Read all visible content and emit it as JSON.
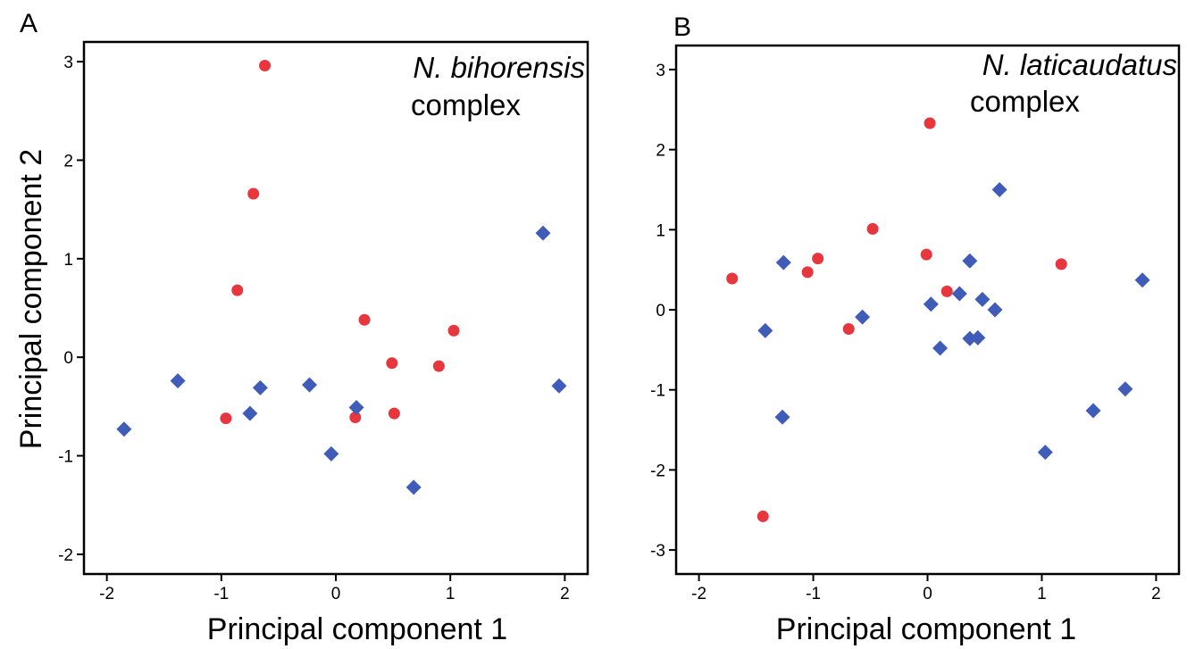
{
  "chart_data": [
    {
      "type": "scatter",
      "panel_label": "A",
      "annotation": [
        "N. bihorensis",
        "complex"
      ],
      "xlabel": "Principal component 1",
      "ylabel": "Principal component 2",
      "xlim": [
        -2.2,
        2.2
      ],
      "ylim": [
        -2.2,
        3.2
      ],
      "xticks": [
        -2,
        -1,
        0,
        1,
        2
      ],
      "yticks": [
        -2,
        -1,
        0,
        1,
        2,
        3
      ],
      "grid": false,
      "legend": "none",
      "series": [
        {
          "marker": "circle",
          "color": "#e8363e",
          "points": [
            {
              "x": -0.62,
              "y": 2.96
            },
            {
              "x": -0.72,
              "y": 1.66
            },
            {
              "x": -0.86,
              "y": 0.68
            },
            {
              "x": 0.25,
              "y": 0.38
            },
            {
              "x": 1.03,
              "y": 0.27
            },
            {
              "x": 0.49,
              "y": -0.06
            },
            {
              "x": 0.9,
              "y": -0.09
            },
            {
              "x": -0.96,
              "y": -0.62
            },
            {
              "x": 0.17,
              "y": -0.61
            },
            {
              "x": 0.51,
              "y": -0.57
            }
          ]
        },
        {
          "marker": "diamond",
          "color": "#3f5cb8",
          "points": [
            {
              "x": 1.81,
              "y": 1.26
            },
            {
              "x": 1.95,
              "y": -0.29
            },
            {
              "x": -1.38,
              "y": -0.24
            },
            {
              "x": -0.66,
              "y": -0.31
            },
            {
              "x": -0.23,
              "y": -0.28
            },
            {
              "x": -0.75,
              "y": -0.57
            },
            {
              "x": 0.18,
              "y": -0.51
            },
            {
              "x": -1.85,
              "y": -0.73
            },
            {
              "x": -0.04,
              "y": -0.98
            },
            {
              "x": 0.68,
              "y": -1.32
            }
          ]
        }
      ]
    },
    {
      "type": "scatter",
      "panel_label": "B",
      "annotation": [
        "N. laticaudatus",
        "complex"
      ],
      "xlabel": "Principal component 1",
      "ylabel": "",
      "xlim": [
        -2.2,
        2.2
      ],
      "ylim": [
        -3.3,
        3.3
      ],
      "xticks": [
        -2,
        -1,
        0,
        1,
        2
      ],
      "yticks": [
        -3,
        -2,
        -1,
        0,
        1,
        2,
        3
      ],
      "grid": false,
      "legend": "none",
      "series": [
        {
          "marker": "circle",
          "color": "#e8363e",
          "points": [
            {
              "x": 0.02,
              "y": 2.33
            },
            {
              "x": -0.48,
              "y": 1.01
            },
            {
              "x": -0.01,
              "y": 0.69
            },
            {
              "x": -0.96,
              "y": 0.64
            },
            {
              "x": -1.05,
              "y": 0.47
            },
            {
              "x": -1.71,
              "y": 0.39
            },
            {
              "x": 0.17,
              "y": 0.23
            },
            {
              "x": 1.17,
              "y": 0.57
            },
            {
              "x": -0.69,
              "y": -0.24
            },
            {
              "x": -1.44,
              "y": -2.58
            }
          ]
        },
        {
          "marker": "diamond",
          "color": "#3f5cb8",
          "points": [
            {
              "x": 0.63,
              "y": 1.5
            },
            {
              "x": -1.26,
              "y": 0.59
            },
            {
              "x": 0.37,
              "y": 0.61
            },
            {
              "x": 1.88,
              "y": 0.37
            },
            {
              "x": 0.28,
              "y": 0.2
            },
            {
              "x": 0.48,
              "y": 0.13
            },
            {
              "x": 0.03,
              "y": 0.07
            },
            {
              "x": 0.59,
              "y": 0.0
            },
            {
              "x": -0.57,
              "y": -0.09
            },
            {
              "x": -1.42,
              "y": -0.26
            },
            {
              "x": 0.37,
              "y": -0.36
            },
            {
              "x": 0.44,
              "y": -0.35
            },
            {
              "x": 0.11,
              "y": -0.48
            },
            {
              "x": 1.73,
              "y": -0.99
            },
            {
              "x": -1.27,
              "y": -1.34
            },
            {
              "x": 1.45,
              "y": -1.26
            },
            {
              "x": 1.03,
              "y": -1.78
            }
          ]
        }
      ]
    }
  ]
}
